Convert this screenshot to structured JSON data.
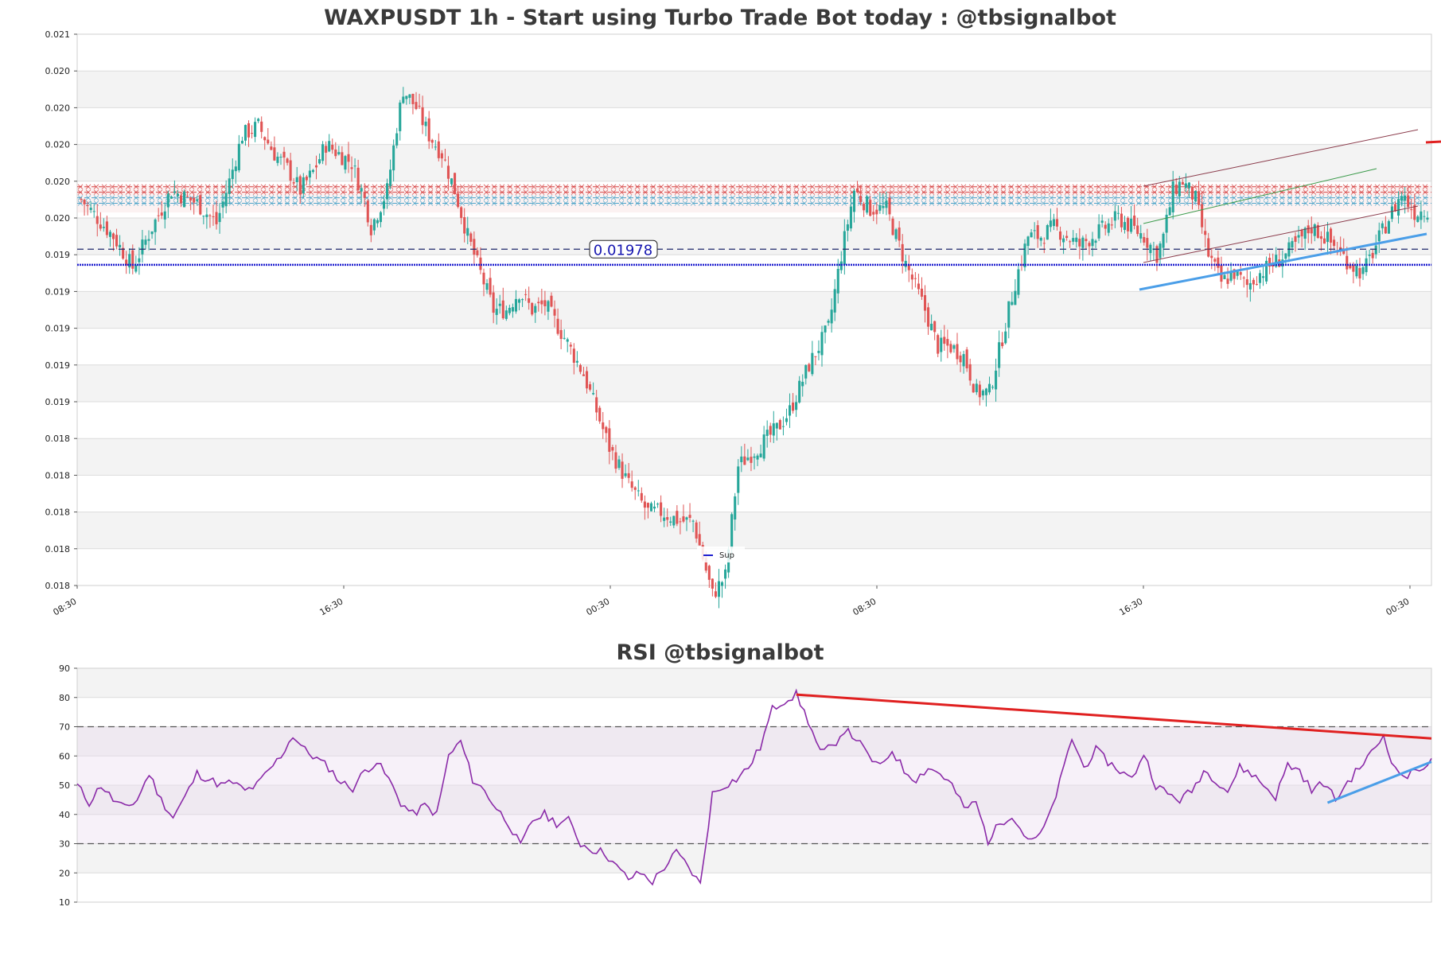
{
  "chart_data": [
    {
      "type": "candlestick",
      "title": "WAXPUSDT 1h - Start using Turbo Trade Bot today : @tbsignalbot",
      "y_tick_labels": [
        "0.021",
        "0.020",
        "0.020",
        "0.020",
        "0.020",
        "0.020",
        "0.019",
        "0.019",
        "0.019",
        "0.019",
        "0.019",
        "0.018",
        "0.018",
        "0.018",
        "0.018",
        "0.018"
      ],
      "x_tick_labels": [
        "08:30",
        "16:30",
        "00:30",
        "08:30",
        "16:30",
        "00:30"
      ],
      "ylim": [
        0.01795,
        0.02095
      ],
      "grid": true,
      "price_label": "0.01978",
      "price_label_value": 0.01978,
      "support_level": 0.019695,
      "resistance_zone": [
        0.01998,
        0.02013
      ],
      "resistance_lines": [
        0.02009,
        0.02012
      ],
      "support_lines": [
        0.02003,
        0.02006
      ],
      "legend": {
        "entries": [
          "Sup"
        ],
        "placement": "bottom-center"
      },
      "colors": {
        "up": "#26a69a",
        "down": "#e05454",
        "support": "#1f1fcf",
        "resistance": "#d64545",
        "zone": "#4aa3c8",
        "trend_up": "#4a9ee8"
      },
      "candle_count": 340,
      "close_path": [
        [
          0,
          0.02005
        ],
        [
          10,
          0.01985
        ],
        [
          16,
          0.01968
        ],
        [
          22,
          0.0199
        ],
        [
          28,
          0.0201
        ],
        [
          36,
          0.02003
        ],
        [
          42,
          0.01992
        ],
        [
          46,
          0.02015
        ],
        [
          50,
          0.0204
        ],
        [
          55,
          0.02045
        ],
        [
          60,
          0.0203
        ],
        [
          64,
          0.02022
        ],
        [
          68,
          0.0201
        ],
        [
          72,
          0.0202
        ],
        [
          76,
          0.02035
        ],
        [
          80,
          0.0203
        ],
        [
          84,
          0.02025
        ],
        [
          88,
          0.02005
        ],
        [
          90,
          0.0199
        ],
        [
          95,
          0.0201
        ],
        [
          98,
          0.02045
        ],
        [
          100,
          0.02065
        ],
        [
          104,
          0.02055
        ],
        [
          108,
          0.0204
        ],
        [
          112,
          0.0203
        ],
        [
          116,
          0.0201
        ],
        [
          120,
          0.01985
        ],
        [
          124,
          0.01965
        ],
        [
          128,
          0.01945
        ],
        [
          132,
          0.01945
        ],
        [
          136,
          0.01955
        ],
        [
          140,
          0.01945
        ],
        [
          144,
          0.01948
        ],
        [
          150,
          0.0193
        ],
        [
          156,
          0.0191
        ],
        [
          160,
          0.0189
        ],
        [
          164,
          0.0187
        ],
        [
          170,
          0.0185
        ],
        [
          176,
          0.01835
        ],
        [
          180,
          0.01835
        ],
        [
          186,
          0.0183
        ],
        [
          190,
          0.0183
        ],
        [
          196,
          0.0179
        ],
        [
          200,
          0.018
        ],
        [
          204,
          0.0186
        ],
        [
          210,
          0.0187
        ],
        [
          216,
          0.0188
        ],
        [
          220,
          0.0189
        ],
        [
          226,
          0.01915
        ],
        [
          232,
          0.01935
        ],
        [
          236,
          0.01975
        ],
        [
          240,
          0.0201
        ],
        [
          245,
          0.02
        ],
        [
          250,
          0.02
        ]
      ],
      "close_path_note_omitted": true
    },
    {
      "type": "line",
      "title": "RSI @tbsignalbot",
      "y_tick_labels": [
        "90",
        "80",
        "70",
        "60",
        "50",
        "40",
        "30",
        "20",
        "10"
      ],
      "ylim": [
        10,
        90
      ],
      "overbought": 70,
      "oversold": 30,
      "colors": {
        "rsi": "#8a2aa8",
        "trend_down": "#e02020",
        "trend_up": "#4a9ee8"
      },
      "rsi_path": [
        [
          0,
          50
        ],
        [
          3,
          44
        ],
        [
          6,
          50
        ],
        [
          9,
          45
        ],
        [
          12,
          42
        ],
        [
          15,
          45
        ],
        [
          18,
          54
        ],
        [
          21,
          45
        ],
        [
          24,
          39
        ],
        [
          27,
          46
        ],
        [
          30,
          54
        ],
        [
          33,
          52
        ],
        [
          36,
          50
        ],
        [
          39,
          51
        ],
        [
          42,
          48
        ],
        [
          45,
          50
        ],
        [
          48,
          55
        ],
        [
          51,
          60
        ],
        [
          54,
          67
        ],
        [
          57,
          62
        ],
        [
          60,
          59
        ],
        [
          63,
          56
        ],
        [
          66,
          51
        ],
        [
          69,
          49
        ],
        [
          72,
          55
        ],
        [
          75,
          58
        ],
        [
          78,
          52
        ],
        [
          81,
          44
        ],
        [
          84,
          40
        ],
        [
          87,
          43
        ],
        [
          90,
          40
        ],
        [
          93,
          60
        ],
        [
          96,
          65
        ],
        [
          99,
          52
        ],
        [
          102,
          48
        ],
        [
          105,
          42
        ],
        [
          108,
          37
        ],
        [
          111,
          29
        ],
        [
          114,
          38
        ],
        [
          117,
          40
        ],
        [
          120,
          37
        ],
        [
          123,
          38
        ],
        [
          126,
          30
        ],
        [
          129,
          28
        ],
        [
          132,
          27
        ],
        [
          135,
          22
        ],
        [
          138,
          18
        ],
        [
          141,
          20
        ],
        [
          144,
          17
        ],
        [
          147,
          22
        ],
        [
          150,
          27
        ],
        [
          153,
          22
        ],
        [
          156,
          16
        ],
        [
          159,
          47
        ],
        [
          162,
          50
        ],
        [
          165,
          52
        ],
        [
          168,
          56
        ],
        [
          171,
          63
        ],
        [
          174,
          76
        ],
        [
          177,
          79
        ],
        [
          180,
          81
        ],
        [
          183,
          72
        ],
        [
          186,
          61
        ],
        [
          189,
          63
        ],
        [
          192,
          69
        ],
        [
          195,
          66
        ],
        [
          198,
          60
        ],
        [
          201,
          56
        ],
        [
          204,
          62
        ],
        [
          207,
          55
        ],
        [
          210,
          52
        ],
        [
          213,
          56
        ],
        [
          216,
          54
        ],
        [
          219,
          50
        ],
        [
          222,
          42
        ],
        [
          225,
          44
        ],
        [
          228,
          31
        ],
        [
          231,
          37
        ],
        [
          234,
          40
        ],
        [
          237,
          33
        ],
        [
          240,
          31
        ],
        [
          243,
          38
        ],
        [
          246,
          51
        ],
        [
          249,
          66
        ],
        [
          252,
          56
        ],
        [
          255,
          62
        ],
        [
          258,
          58
        ],
        [
          261,
          55
        ],
        [
          264,
          52
        ],
        [
          267,
          61
        ],
        [
          270,
          50
        ],
        [
          273,
          47
        ],
        [
          276,
          45
        ],
        [
          279,
          48
        ],
        [
          282,
          55
        ],
        [
          285,
          52
        ],
        [
          288,
          48
        ],
        [
          291,
          56
        ],
        [
          294,
          54
        ],
        [
          297,
          50
        ],
        [
          300,
          46
        ],
        [
          303,
          57
        ],
        [
          306,
          55
        ],
        [
          309,
          48
        ],
        [
          312,
          51
        ],
        [
          315,
          45
        ],
        [
          318,
          51
        ],
        [
          321,
          56
        ],
        [
          324,
          61
        ],
        [
          327,
          67
        ],
        [
          330,
          55
        ],
        [
          333,
          53
        ],
        [
          336,
          56
        ],
        [
          339,
          58
        ]
      ],
      "trend_down": [
        [
          180,
          81
        ],
        [
          339,
          66
        ]
      ],
      "trend_up": [
        [
          313,
          44
        ],
        [
          339,
          58
        ]
      ]
    }
  ]
}
